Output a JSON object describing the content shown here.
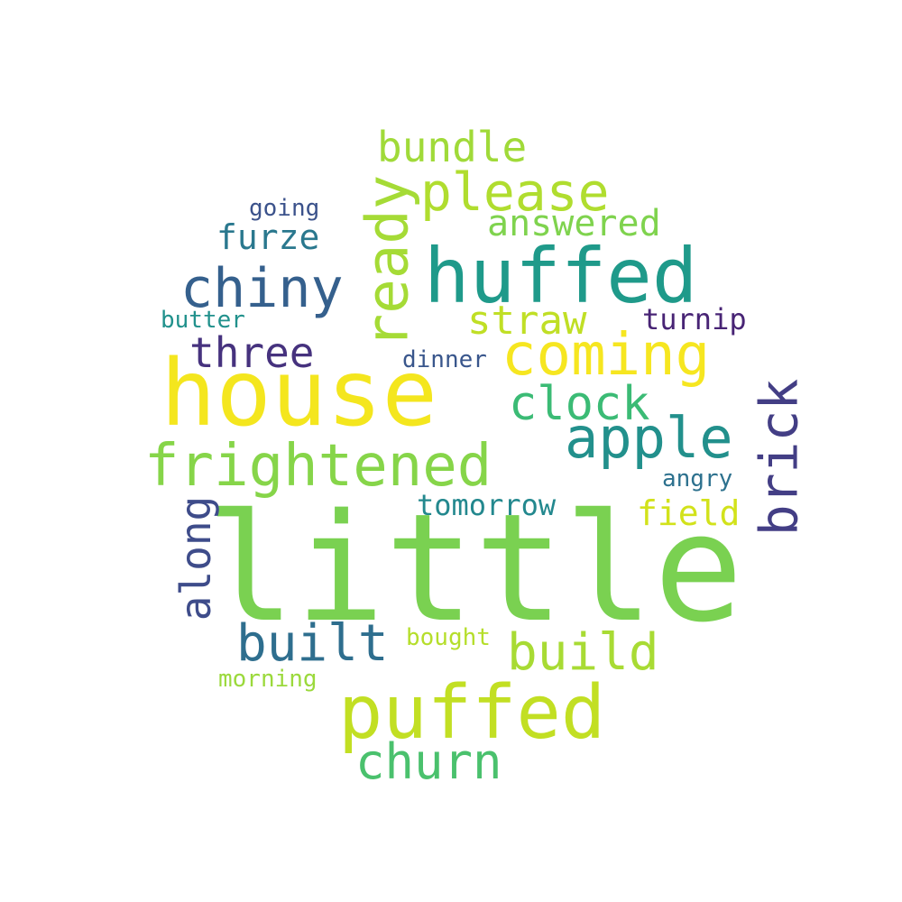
{
  "words": [
    {
      "text": "little",
      "color": "#7ad151"
    },
    {
      "text": "house",
      "color": "#f4e61e"
    },
    {
      "text": "huffed",
      "color": "#1f9a8a"
    },
    {
      "text": "puffed",
      "color": "#c2df23"
    },
    {
      "text": "frightened",
      "color": "#86d549"
    },
    {
      "text": "coming",
      "color": "#f6e620"
    },
    {
      "text": "apple",
      "color": "#22908c"
    },
    {
      "text": "chiny",
      "color": "#35608d"
    },
    {
      "text": "ready",
      "color": "#a5db36"
    },
    {
      "text": "please",
      "color": "#b0dd2f"
    },
    {
      "text": "build",
      "color": "#a8db34"
    },
    {
      "text": "built",
      "color": "#2e6e8e"
    },
    {
      "text": "churn",
      "color": "#4ac16d"
    },
    {
      "text": "clock",
      "color": "#3bbb75"
    },
    {
      "text": "brick",
      "color": "#433e85"
    },
    {
      "text": "bundle",
      "color": "#a0da39"
    },
    {
      "text": "three",
      "color": "#46327e"
    },
    {
      "text": "straw",
      "color": "#c0df25"
    },
    {
      "text": "along",
      "color": "#3e4c8a"
    },
    {
      "text": "furze",
      "color": "#2a788e"
    },
    {
      "text": "answered",
      "color": "#7fd34e"
    },
    {
      "text": "field",
      "color": "#d2e21b"
    },
    {
      "text": "tomorrow",
      "color": "#23888e"
    },
    {
      "text": "turnip",
      "color": "#482475"
    },
    {
      "text": "going",
      "color": "#3b528b"
    },
    {
      "text": "dinner",
      "color": "#39568c"
    },
    {
      "text": "butter",
      "color": "#21918c"
    },
    {
      "text": "angry",
      "color": "#2d718e"
    },
    {
      "text": "bought",
      "color": "#b5de2b"
    },
    {
      "text": "morning",
      "color": "#9bd93c"
    }
  ]
}
